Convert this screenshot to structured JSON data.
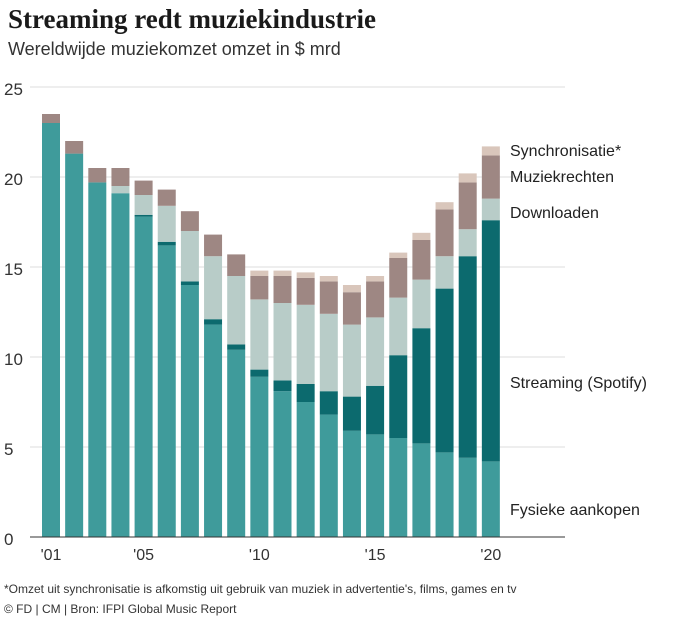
{
  "chart_data": {
    "type": "bar",
    "stacked": true,
    "title": "Streaming redt muziekindustrie",
    "subtitle": "Wereldwijde muziekomzet omzet in $ mrd",
    "xlabel": "",
    "ylabel": "",
    "ylim": [
      0,
      25
    ],
    "yticks": [
      0,
      5,
      10,
      15,
      20,
      25
    ],
    "xtick_labels": [
      {
        "year": 2001,
        "label": "'01"
      },
      {
        "year": 2005,
        "label": "'05"
      },
      {
        "year": 2010,
        "label": "'10"
      },
      {
        "year": 2015,
        "label": "'15"
      },
      {
        "year": 2020,
        "label": "'20"
      }
    ],
    "categories": [
      2001,
      2002,
      2003,
      2004,
      2005,
      2006,
      2007,
      2008,
      2009,
      2010,
      2011,
      2012,
      2013,
      2014,
      2015,
      2016,
      2017,
      2018,
      2019,
      2020
    ],
    "series": [
      {
        "name": "Fysieke aankopen",
        "color": "#3f9b9b",
        "values": [
          23.0,
          21.3,
          19.7,
          19.1,
          17.8,
          16.2,
          14.0,
          11.8,
          10.4,
          8.9,
          8.1,
          7.5,
          6.8,
          5.9,
          5.7,
          5.5,
          5.2,
          4.7,
          4.4,
          4.2
        ]
      },
      {
        "name": "Streaming (Spotify)",
        "color": "#0c6a6e",
        "values": [
          0,
          0,
          0,
          0,
          0.1,
          0.2,
          0.2,
          0.3,
          0.3,
          0.4,
          0.6,
          1.0,
          1.3,
          1.9,
          2.7,
          4.6,
          6.4,
          9.1,
          11.2,
          13.4
        ]
      },
      {
        "name": "Downloaden",
        "color": "#b8ccc8",
        "values": [
          0,
          0,
          0,
          0.4,
          1.1,
          2.0,
          2.8,
          3.5,
          3.8,
          3.9,
          4.3,
          4.4,
          4.3,
          4.0,
          3.8,
          3.2,
          2.7,
          1.8,
          1.5,
          1.2
        ]
      },
      {
        "name": "Muziekrechten",
        "color": "#9e8783",
        "values": [
          0.5,
          0.7,
          0.8,
          1.0,
          0.8,
          0.9,
          1.1,
          1.2,
          1.2,
          1.3,
          1.5,
          1.5,
          1.8,
          1.8,
          2.0,
          2.2,
          2.2,
          2.6,
          2.6,
          2.4
        ]
      },
      {
        "name": "Synchronisatie*",
        "color": "#d9c6bb",
        "values": [
          0,
          0,
          0,
          0,
          0,
          0,
          0,
          0,
          0,
          0.3,
          0.3,
          0.3,
          0.3,
          0.4,
          0.3,
          0.3,
          0.4,
          0.4,
          0.5,
          0.5
        ]
      }
    ],
    "legend": "right, inline labels beside last bar"
  },
  "footnote": "*Omzet uit synchronisatie is afkomstig uit gebruik van muziek in advertentie's, films, games en tv",
  "source": "© FD | CM | Bron: IFPI Global Music Report"
}
